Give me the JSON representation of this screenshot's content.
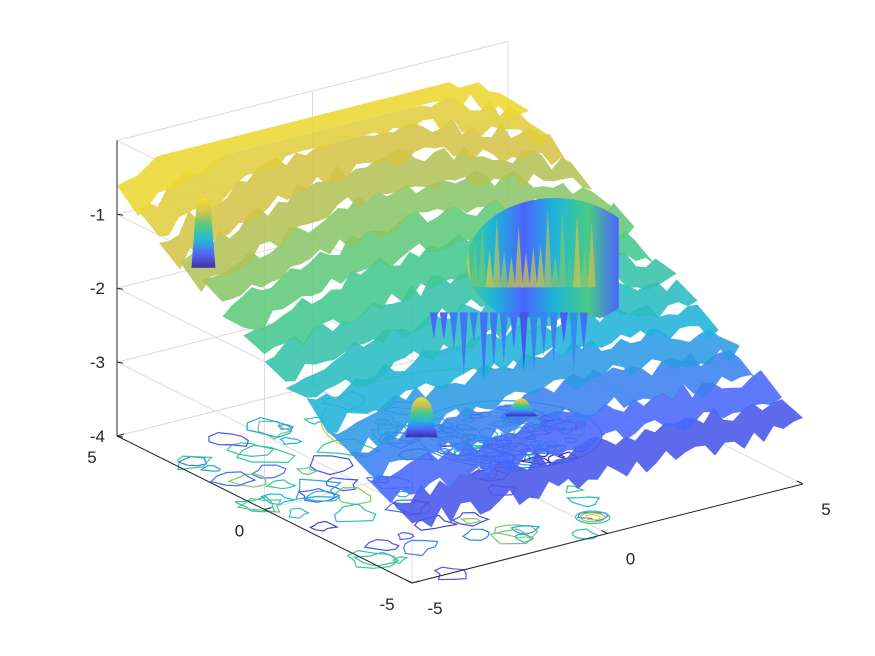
{
  "chart_data": {
    "type": "surface",
    "title": "",
    "xlabel": "",
    "ylabel": "",
    "zlabel": "",
    "xlim": [
      -5,
      5
    ],
    "ylim": [
      -5,
      5
    ],
    "zlim": [
      -4,
      0
    ],
    "x_ticks": [
      "-5",
      "0",
      "5"
    ],
    "y_ticks": [
      "-5",
      "0",
      "5"
    ],
    "z_ticks": [
      "-4",
      "-3",
      "-2",
      "-1"
    ],
    "grid": true,
    "colormap": "parula",
    "colormap_stops": [
      "#3e26a8",
      "#4a64fd",
      "#1eb6d8",
      "#48cb86",
      "#d0c14a",
      "#f9e026"
    ],
    "contour_projection": "floor",
    "features": [
      {
        "kind": "spike",
        "x": -4.6,
        "y": 2.6,
        "z_peak": -0.3,
        "color_stop": 5
      },
      {
        "kind": "spike",
        "x": -1.0,
        "y": -3.4,
        "z_peak": -2.3,
        "color_stop": 4
      },
      {
        "kind": "spike",
        "x": -3.4,
        "y": -3.2,
        "z_peak": -2.0,
        "color_stop": 3
      },
      {
        "kind": "disc",
        "center_x": 1.7,
        "center_y": 0.6,
        "radius": 1.9,
        "z_top": -1.2,
        "z_bottom": -3.6
      },
      {
        "kind": "ring",
        "x": 0.3,
        "y": -4.1
      }
    ]
  }
}
